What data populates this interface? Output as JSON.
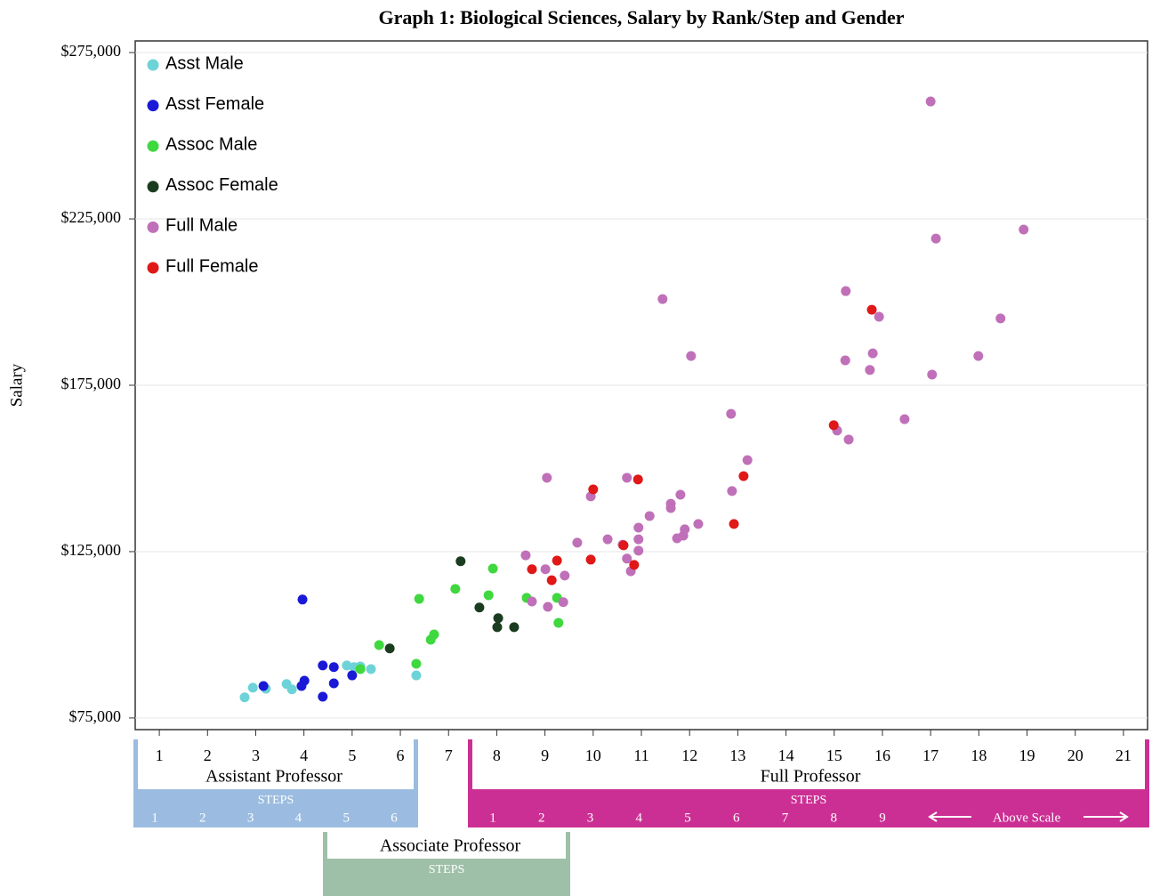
{
  "chart_data": {
    "type": "scatter",
    "title": "Graph 1: Biological Sciences, Salary by Rank/Step and Gender",
    "y_label": "Salary",
    "xlim": [
      0.5,
      21.5
    ],
    "xticks": [
      1,
      2,
      3,
      4,
      5,
      6,
      7,
      8,
      9,
      10,
      11,
      12,
      13,
      14,
      15,
      16,
      17,
      18,
      19,
      20,
      21
    ],
    "ylim": [
      71500,
      278500
    ],
    "yticks": [
      {
        "value": 75000,
        "label": "$75,000"
      },
      {
        "value": 125000,
        "label": "$125,000"
      },
      {
        "value": 175000,
        "label": "$175,000"
      },
      {
        "value": 225000,
        "label": "$225,000"
      },
      {
        "value": 275000,
        "label": "$275,000"
      }
    ],
    "grid": true,
    "legend": "top-left",
    "series": [
      {
        "name": "Asst Male",
        "color": "#6dd3d8",
        "x": [
          2.77,
          2.94,
          3.21,
          3.64,
          3.75,
          4.89,
          5.04,
          5.17,
          5.39,
          6.33
        ],
        "values": [
          81200,
          84100,
          83800,
          85200,
          83600,
          90800,
          90300,
          90500,
          89700,
          87800
        ]
      },
      {
        "name": "Asst Female",
        "color": "#1a1ad6",
        "x": [
          3.97,
          3.16,
          4.01,
          3.95,
          4.39,
          4.62,
          4.62,
          4.39,
          5.0
        ],
        "values": [
          110600,
          84600,
          86200,
          84600,
          90800,
          90300,
          85400,
          81400,
          87800
        ]
      },
      {
        "name": "Assoc Male",
        "color": "#3fd83f",
        "x": [
          5.17,
          5.56,
          6.39,
          6.33,
          6.63,
          6.7,
          7.14,
          7.83,
          7.92,
          8.62,
          9.25,
          9.28
        ],
        "values": [
          89700,
          96900,
          110800,
          91300,
          98500,
          100100,
          113800,
          111900,
          119900,
          111100,
          111100,
          103600
        ]
      },
      {
        "name": "Assoc Female",
        "color": "#1b3d1f",
        "x": [
          5.78,
          7.25,
          7.64,
          8.03,
          8.01,
          8.36
        ],
        "values": [
          95900,
          122100,
          108200,
          105000,
          102300,
          102300
        ]
      },
      {
        "name": "Full Male",
        "color": "#c070b8",
        "x": [
          17.0,
          17.11,
          18.93,
          15.24,
          15.93,
          18.45,
          11.44,
          12.03,
          15.23,
          15.8,
          15.74,
          17.03,
          17.99,
          12.86,
          16.46,
          15.06,
          15.3,
          13.2,
          9.04,
          10.7,
          9.95,
          11.81,
          11.61,
          11.61,
          12.88,
          11.17,
          10.94,
          12.18,
          11.9,
          11.87,
          11.74,
          9.67,
          10.3,
          10.94,
          10.61,
          10.94,
          8.6,
          9.01,
          9.41,
          10.7,
          10.78,
          8.73,
          9.06,
          9.38
        ],
        "values": [
          260300,
          219100,
          221800,
          203300,
          195600,
          195100,
          200900,
          183800,
          182500,
          184600,
          179600,
          178200,
          183800,
          166400,
          164800,
          161400,
          158700,
          152500,
          147200,
          147200,
          141600,
          142100,
          139400,
          138100,
          143200,
          135700,
          132200,
          133300,
          131700,
          129800,
          129000,
          127700,
          128700,
          128700,
          127100,
          125300,
          123900,
          119700,
          117800,
          122900,
          119100,
          110000,
          108400,
          109800
        ]
      },
      {
        "name": "Full Female",
        "color": "#e01818",
        "x": [
          15.78,
          14.99,
          13.12,
          12.92,
          10.0,
          10.93,
          10.63,
          8.73,
          9.25,
          9.14,
          9.95,
          10.85
        ],
        "values": [
          197700,
          163000,
          147700,
          133300,
          143700,
          146700,
          126900,
          119700,
          122300,
          116400,
          122600,
          121000
        ]
      }
    ],
    "rank_bands": [
      {
        "name": "Assistant Professor",
        "color": "#9bbce0",
        "steps_label": "STEPS",
        "steps": [
          "1",
          "2",
          "3",
          "4",
          "5",
          "6"
        ]
      },
      {
        "name": "Associate Professor",
        "color": "#9fc0a8",
        "steps_label": "STEPS",
        "steps": []
      },
      {
        "name": "Full Professor",
        "color": "#cc2f94",
        "steps_label": "STEPS",
        "steps": [
          "1",
          "2",
          "3",
          "4",
          "5",
          "6",
          "7",
          "8",
          "9"
        ],
        "note": "Above Scale"
      }
    ]
  }
}
